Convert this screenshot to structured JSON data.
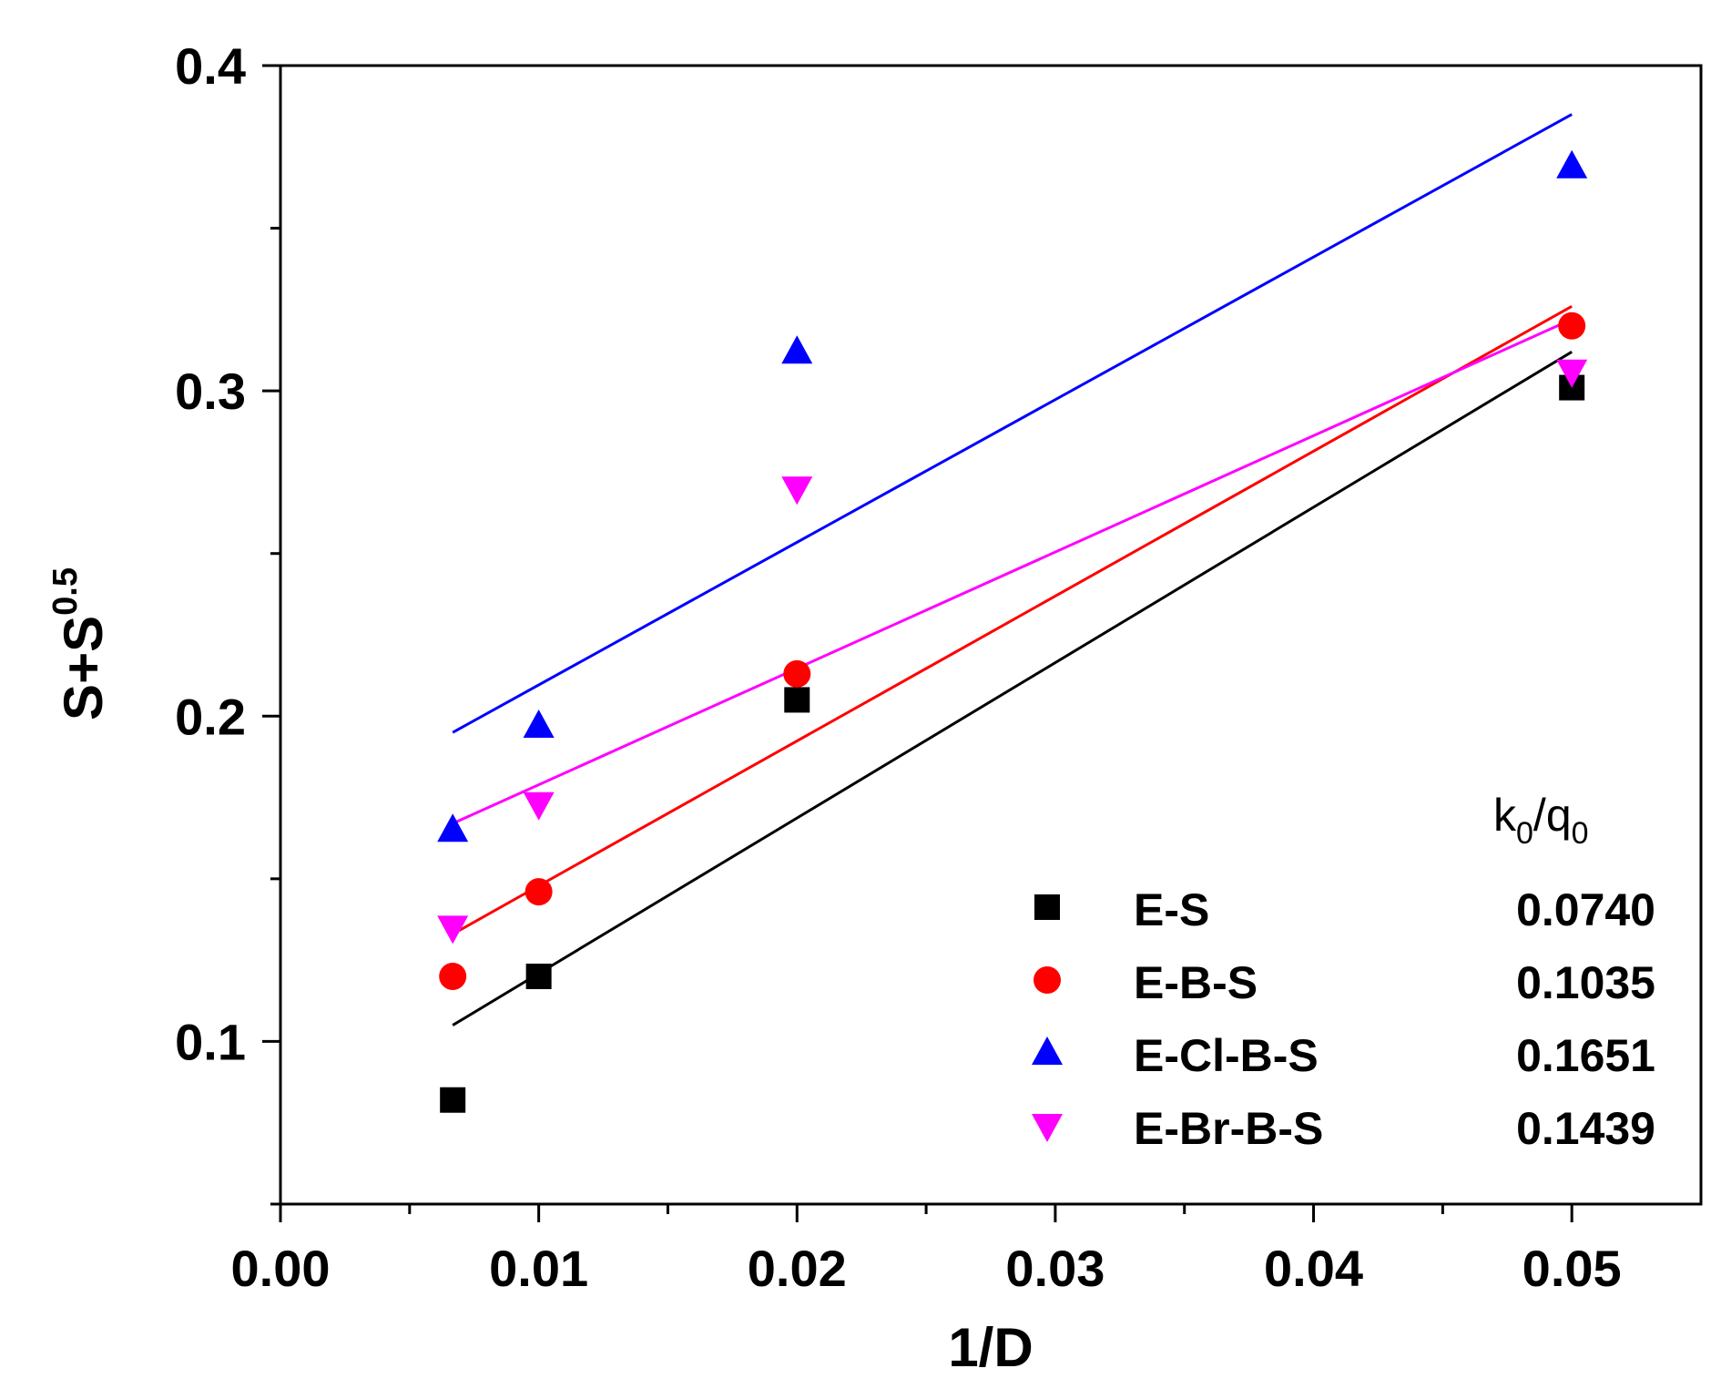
{
  "chart_data": {
    "type": "scatter",
    "title": "",
    "xlabel": "1/D",
    "ylabel_base": "S+S",
    "ylabel_sup": "0.5",
    "xlim": [
      0.0,
      0.055
    ],
    "ylim": [
      0.05,
      0.4
    ],
    "x_ticks": [
      0.0,
      0.01,
      0.02,
      0.03,
      0.04,
      0.05
    ],
    "x_tick_labels": [
      "0.00",
      "0.01",
      "0.02",
      "0.03",
      "0.04",
      "0.05"
    ],
    "y_ticks": [
      0.1,
      0.2,
      0.3,
      0.4
    ],
    "y_tick_labels": [
      "0.1",
      "0.2",
      "0.3",
      "0.4"
    ],
    "legend_header_base": "k",
    "legend_header_sub1": "0",
    "legend_header_mid": "/q",
    "legend_header_sub2": "0",
    "legend_position": "bottom-right",
    "series": [
      {
        "name": "E-S",
        "k0q0": "0.0740",
        "color": "#000000",
        "marker": "square",
        "x": [
          0.00667,
          0.01,
          0.02,
          0.05
        ],
        "y": [
          0.082,
          0.12,
          0.205,
          0.301
        ],
        "fit": {
          "x": [
            0.00667,
            0.05
          ],
          "y": [
            0.105,
            0.312
          ]
        }
      },
      {
        "name": "E-B-S",
        "k0q0": "0.1035",
        "color": "#ff0000",
        "marker": "circle",
        "x": [
          0.00667,
          0.01,
          0.02,
          0.05
        ],
        "y": [
          0.12,
          0.146,
          0.213,
          0.32
        ],
        "fit": {
          "x": [
            0.00667,
            0.05
          ],
          "y": [
            0.133,
            0.326
          ]
        }
      },
      {
        "name": "E-Cl-B-S",
        "k0q0": "0.1651",
        "color": "#0000ff",
        "marker": "triangle-up",
        "x": [
          0.00667,
          0.01,
          0.02,
          0.05
        ],
        "y": [
          0.165,
          0.197,
          0.312,
          0.369
        ],
        "fit": {
          "x": [
            0.00667,
            0.05
          ],
          "y": [
            0.195,
            0.385
          ]
        }
      },
      {
        "name": "E-Br-B-S",
        "k0q0": "0.1439",
        "color": "#ff00ff",
        "marker": "triangle-down",
        "x": [
          0.00667,
          0.01,
          0.02,
          0.05
        ],
        "y": [
          0.135,
          0.173,
          0.27,
          0.306
        ],
        "fit": {
          "x": [
            0.00667,
            0.05
          ],
          "y": [
            0.167,
            0.322
          ]
        }
      }
    ]
  }
}
